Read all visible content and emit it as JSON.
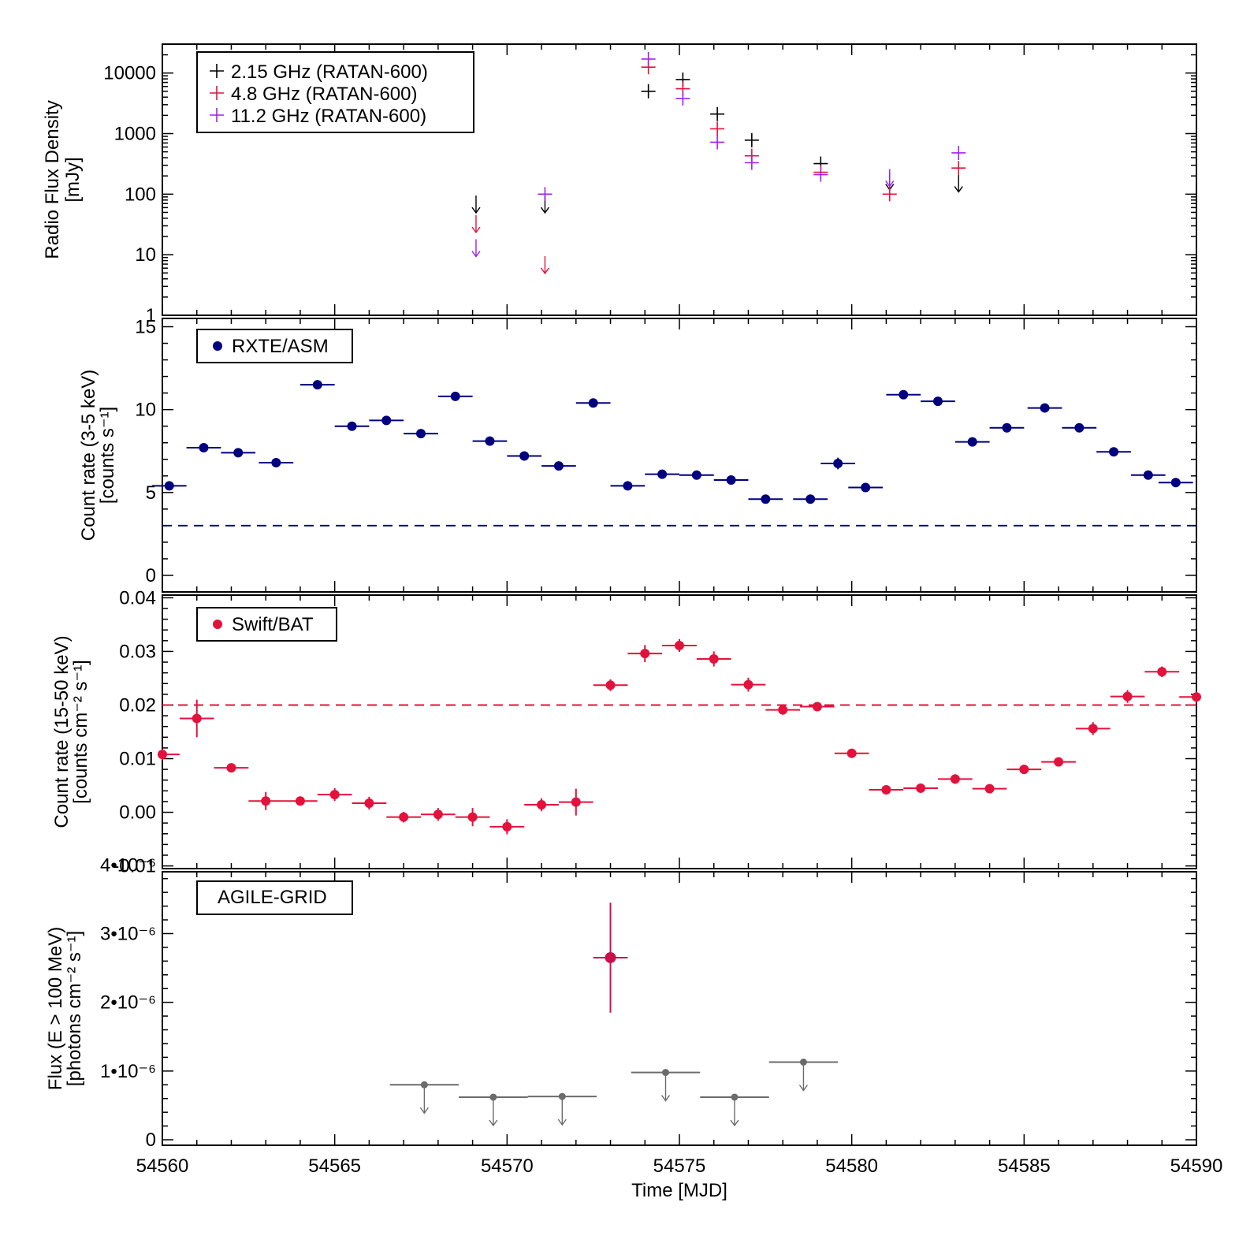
{
  "chart_data": [
    {
      "id": "radio",
      "type": "scatter",
      "yscale": "log",
      "ylim": [
        1,
        30000
      ],
      "xlim": [
        54560,
        54590
      ],
      "ylabel": "Radio Flux Density",
      "yunit": "[mJy]",
      "yticks": [
        1,
        10,
        100,
        1000,
        10000
      ],
      "ytick_labels": [
        "1",
        "10",
        "100",
        "1000",
        "10000"
      ],
      "legend": [
        {
          "label": "2.15 GHz (RATAN-600)",
          "color": "#000000"
        },
        {
          "label": "4.8 GHz (RATAN-600)",
          "color": "#e3123c"
        },
        {
          "label": "11.2 GHz (RATAN-600)",
          "color": "#a020f0"
        }
      ],
      "series": [
        {
          "name": "2.15 GHz (RATAN-600)",
          "color": "#000000",
          "points": [
            [
              54574.1,
              5000
            ],
            [
              54575.1,
              7800
            ],
            [
              54576.1,
              2100
            ],
            [
              54577.1,
              780
            ],
            [
              54579.1,
              320
            ]
          ],
          "upper_limits": [
            [
              54569.1,
              95
            ],
            [
              54571.1,
              95
            ],
            [
              54581.1,
              230
            ],
            [
              54583.1,
              210
            ]
          ]
        },
        {
          "name": "4.8 GHz (RATAN-600)",
          "color": "#e3123c",
          "points": [
            [
              54574.1,
              12500
            ],
            [
              54575.1,
              5500
            ],
            [
              54576.1,
              1200
            ],
            [
              54577.1,
              430
            ],
            [
              54579.1,
              230
            ],
            [
              54581.1,
              100
            ],
            [
              54583.1,
              270
            ]
          ],
          "upper_limits": [
            [
              54569.1,
              45
            ],
            [
              54571.1,
              9.5
            ]
          ]
        },
        {
          "name": "11.2 GHz (RATAN-600)",
          "color": "#a020f0",
          "points": [
            [
              54571.1,
              100
            ],
            [
              54574.1,
              17000
            ],
            [
              54575.1,
              3800
            ],
            [
              54576.1,
              720
            ],
            [
              54577.1,
              330
            ],
            [
              54579.1,
              210
            ],
            [
              54583.1,
              480
            ]
          ],
          "upper_limits": [
            [
              54569.1,
              18
            ],
            [
              54581.1,
              260
            ]
          ]
        }
      ]
    },
    {
      "id": "asm",
      "type": "scatter",
      "ylim": [
        -1,
        15.5
      ],
      "xlim": [
        54560,
        54590
      ],
      "ylabel": "Count rate (3-5 keV)",
      "yunit": "[counts s⁻¹]",
      "yticks": [
        0,
        5,
        10,
        15
      ],
      "ytick_labels": [
        "0",
        "5",
        "10",
        "15"
      ],
      "legend": [
        {
          "label": "RXTE/ASM",
          "color": "#00007f"
        }
      ],
      "reference_line": 3.0,
      "series": [
        {
          "name": "RXTE/ASM",
          "color": "#00007f",
          "xerr": 0.5,
          "x": [
            54560.2,
            54561.2,
            54562.2,
            54563.3,
            54564.5,
            54565.5,
            54566.5,
            54567.5,
            54568.5,
            54569.5,
            54570.5,
            54571.5,
            54572.5,
            54573.5,
            54574.5,
            54575.5,
            54576.5,
            54577.5,
            54578.8,
            54579.6,
            54580.4,
            54581.5,
            54582.5,
            54583.5,
            54584.5,
            54585.6,
            54586.6,
            54587.6,
            54588.6,
            54589.4
          ],
          "y": [
            5.4,
            7.7,
            7.4,
            6.8,
            11.5,
            9.0,
            9.35,
            8.55,
            10.8,
            8.1,
            7.2,
            6.6,
            10.4,
            5.4,
            6.1,
            6.05,
            5.75,
            4.6,
            4.6,
            6.75,
            5.3,
            10.9,
            10.5,
            8.05,
            8.9,
            10.1,
            8.9,
            7.45,
            6.05,
            5.6
          ],
          "yerr": [
            0.15,
            0.15,
            0.15,
            0.15,
            0.15,
            0.15,
            0.15,
            0.15,
            0.15,
            0.15,
            0.15,
            0.15,
            0.15,
            0.15,
            0.15,
            0.15,
            0.15,
            0.15,
            0.15,
            0.35,
            0.15,
            0.15,
            0.15,
            0.15,
            0.15,
            0.15,
            0.15,
            0.15,
            0.15,
            0.15
          ]
        }
      ]
    },
    {
      "id": "bat",
      "type": "scatter",
      "ylim": [
        -0.0105,
        0.0405
      ],
      "xlim": [
        54560,
        54590
      ],
      "ylabel": "Count rate (15-50 keV)",
      "yunit": "[counts cm⁻² s⁻¹]",
      "yticks": [
        -0.01,
        0.0,
        0.01,
        0.02,
        0.03,
        0.04
      ],
      "ytick_labels": [
        "-0.01",
        "0.00",
        "0.01",
        "0.02",
        "0.03",
        "0.04"
      ],
      "legend": [
        {
          "label": "Swift/BAT",
          "color": "#e3123c"
        }
      ],
      "reference_line": 0.02,
      "series": [
        {
          "name": "Swift/BAT",
          "color": "#e3123c",
          "xerr": 0.5,
          "x": [
            54560,
            54561,
            54562,
            54563,
            54564,
            54565,
            54566,
            54567,
            54568,
            54569,
            54570,
            54571,
            54572,
            54573,
            54574,
            54575,
            54576,
            54577,
            54578,
            54579,
            54580,
            54581,
            54582,
            54583,
            54584,
            54585,
            54586,
            54587,
            54588,
            54589,
            54590
          ],
          "y": [
            0.0108,
            0.0175,
            0.0083,
            0.0021,
            0.0021,
            0.0033,
            0.0017,
            -0.0009,
            -0.0004,
            -0.0009,
            -0.0027,
            0.0014,
            0.0019,
            0.0237,
            0.0296,
            0.0311,
            0.0286,
            0.0238,
            0.0191,
            0.0197,
            0.011,
            0.0042,
            0.0045,
            0.0062,
            0.0044,
            0.008,
            0.0094,
            0.0156,
            0.0216,
            0.0262,
            0.0215
          ],
          "yerr": [
            0.001,
            0.0035,
            0.0008,
            0.0017,
            0.0008,
            0.0012,
            0.0012,
            0.001,
            0.0012,
            0.0017,
            0.0014,
            0.0012,
            0.0025,
            0.0011,
            0.0016,
            0.0012,
            0.0014,
            0.0013,
            0.0009,
            0.0008,
            0.0007,
            0.0006,
            0.0006,
            0.0009,
            0.0006,
            0.0007,
            0.0008,
            0.0012,
            0.0012,
            0.001,
            0.001
          ]
        }
      ]
    },
    {
      "id": "agile",
      "type": "scatter",
      "ylim": [
        -0.08,
        3.9
      ],
      "xlim": [
        54560,
        54590
      ],
      "ylabel": "Flux (E > 100 MeV)",
      "yunit": "[photons cm⁻² s⁻¹]",
      "yticks": [
        0,
        1,
        2,
        3,
        4
      ],
      "ytick_labels": [
        "0",
        "1•10⁻⁶",
        "2•10⁻⁶",
        "3•10⁻⁶",
        "4•10⁻⁶"
      ],
      "yscale_factor": "1e-6",
      "legend": [
        {
          "label": "AGILE-GRID",
          "color": "#000000"
        }
      ],
      "detection": {
        "x": 54573.0,
        "xerr": 0.5,
        "y": 2.65,
        "yerr_hi": 0.8,
        "yerr_lo": 0.8,
        "color": "#c8104c"
      },
      "upper_limits": {
        "color": "#6b6b6b",
        "xerr": 1.0,
        "x": [
          54567.6,
          54569.6,
          54571.6,
          54574.6,
          54576.6,
          54578.6
        ],
        "y": [
          0.8,
          0.62,
          0.63,
          0.98,
          0.62,
          1.13
        ]
      }
    }
  ],
  "xaxis": {
    "label": "Time  [MJD]",
    "ticks": [
      54560,
      54565,
      54570,
      54575,
      54580,
      54585,
      54590
    ],
    "tick_labels": [
      "54560",
      "54565",
      "54570",
      "54575",
      "54580",
      "54585",
      "54590"
    ]
  }
}
